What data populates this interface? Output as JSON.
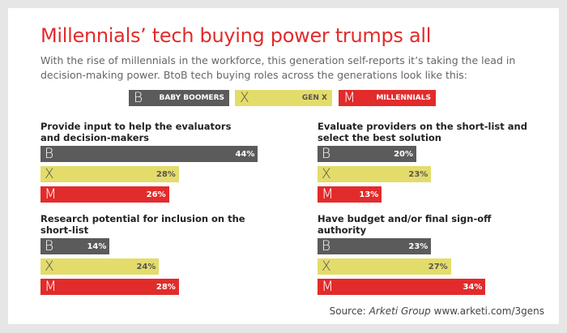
{
  "title": "Millennials’ tech buying power trumps all",
  "subtitle": "With the rise of millennials in the workforce, this generation self-reports it’s taking the lead in decision-making power. BtoB tech buying roles across the generations look like this:",
  "legend": [
    {
      "letter": "B",
      "name": "BABY BOOMERS",
      "color": "#5b5b5b",
      "text_color": "#ffffff"
    },
    {
      "letter": "X",
      "name": "GEN X",
      "color": "#e4dc6a",
      "text_color": "#555555"
    },
    {
      "letter": "M",
      "name": "MILLENNIALS",
      "color": "#e22b2b",
      "text_color": "#ffffff"
    }
  ],
  "chart_data": [
    {
      "type": "bar",
      "title": "Provide input to help the evaluators and decision-makers",
      "categories": [
        "B",
        "X",
        "M"
      ],
      "values": [
        44,
        28,
        26
      ],
      "value_labels": [
        "44%",
        "28%",
        "26%"
      ]
    },
    {
      "type": "bar",
      "title": "Evaluate providers on the short-list and select the best solution",
      "categories": [
        "B",
        "X",
        "M"
      ],
      "values": [
        20,
        23,
        13
      ],
      "value_labels": [
        "20%",
        "23%",
        "13%"
      ]
    },
    {
      "type": "bar",
      "title": "Research potential for inclusion on the short-list",
      "categories": [
        "B",
        "X",
        "M"
      ],
      "values": [
        14,
        24,
        28
      ],
      "value_labels": [
        "14%",
        "24%",
        "28%"
      ]
    },
    {
      "type": "bar",
      "title": "Have budget and/or final sign-off authority",
      "categories": [
        "B",
        "X",
        "M"
      ],
      "values": [
        23,
        27,
        34
      ],
      "value_labels": [
        "23%",
        "27%",
        "34%"
      ]
    }
  ],
  "source": {
    "prefix": "Source:",
    "name": "Arketi Group",
    "url": "www.arketi.com/3gens"
  }
}
